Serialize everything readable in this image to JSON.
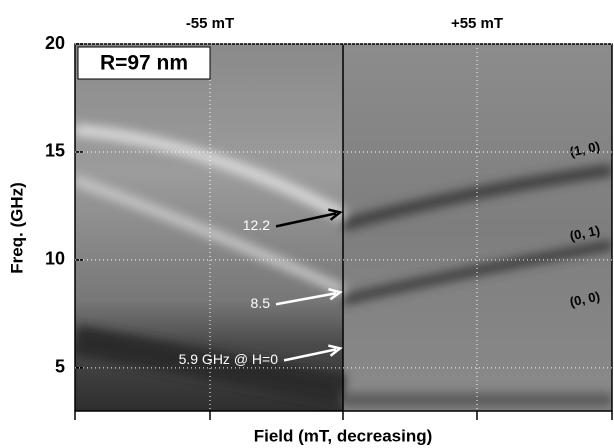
{
  "chart_data": {
    "type": "spectrogram",
    "box_label": "R=97 nm",
    "top_labels": [
      "-55 mT",
      "+55 mT"
    ],
    "xlabel": "Field (mT, decreasing)",
    "ylabel": "Freq. (GHz)",
    "ylim": [
      3,
      20
    ],
    "yticks": [
      5,
      10,
      15,
      20
    ],
    "grid": true,
    "annotations": [
      {
        "text": "12.2",
        "y": 12.2,
        "color": "#000000"
      },
      {
        "text": "8.5",
        "y": 8.5,
        "color": "#ffffff"
      },
      {
        "text": "5.9 GHz @ H=0",
        "y": 5.9,
        "color": "#ffffff"
      }
    ],
    "mode_labels": [
      "(1, 0)",
      "(0, 1)",
      "(0, 0)"
    ]
  }
}
